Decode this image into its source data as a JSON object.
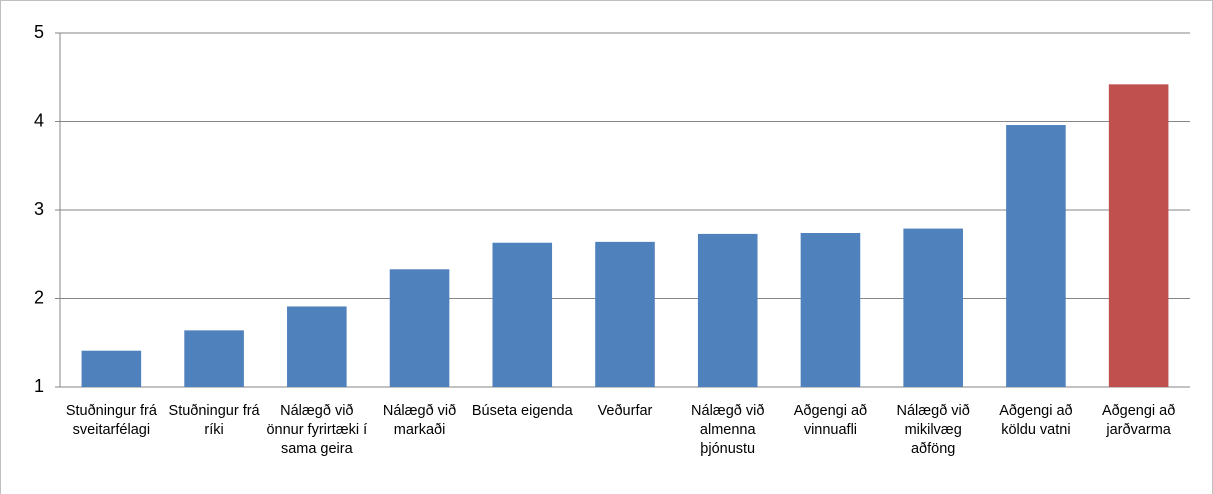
{
  "chart_data": {
    "type": "bar",
    "categories": [
      "Stuðningur frá sveitarfélagi",
      "Stuðningur frá ríki",
      "Nálægð við önnur fyrirtæki í sama geira",
      "Nálægð við markaði",
      "Búseta eigenda",
      "Veðurfar",
      "Nálægð við almenna þjónustu",
      "Aðgengi að vinnuafli",
      "Nálægð við mikilvæg aðföng",
      "Aðgengi að köldu vatni",
      "Aðgengi að jarðvarma"
    ],
    "values": [
      1.41,
      1.64,
      1.91,
      2.33,
      2.63,
      2.64,
      2.73,
      2.74,
      2.79,
      3.96,
      4.42
    ],
    "colors": [
      "#4f81bd",
      "#4f81bd",
      "#4f81bd",
      "#4f81bd",
      "#4f81bd",
      "#4f81bd",
      "#4f81bd",
      "#4f81bd",
      "#4f81bd",
      "#4f81bd",
      "#c0504d"
    ],
    "ylim": [
      1,
      5
    ],
    "yticks": [
      1,
      2,
      3,
      4,
      5
    ],
    "grid": true
  }
}
